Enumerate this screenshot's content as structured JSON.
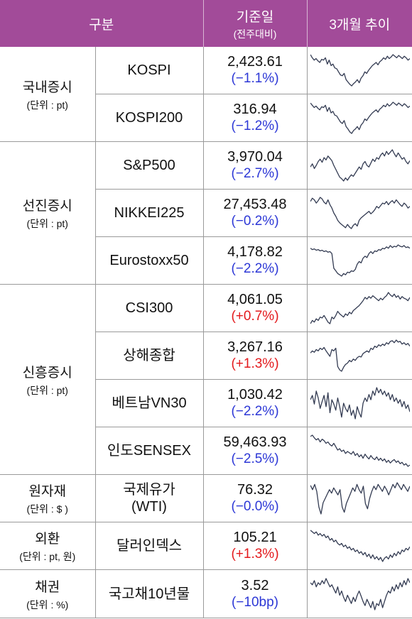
{
  "header": {
    "category": "구분",
    "date_title": "기준일",
    "date_sub": "(전주대비)",
    "trend": "3개월 추이"
  },
  "groups": [
    {
      "name": "국내증시",
      "unit": "(단위 : pt)"
    },
    {
      "name": "선진증시",
      "unit": "(단위 : pt)"
    },
    {
      "name": "신흥증시",
      "unit": "(단위 : pt)"
    },
    {
      "name": "원자재",
      "unit": "(단위 : $ )"
    },
    {
      "name": "외환",
      "unit": "(단위 : pt, 원)"
    },
    {
      "name": "채권",
      "unit": "(단위 : %)"
    }
  ],
  "rows": [
    {
      "name": "KOSPI",
      "value": "2,423.61",
      "change": "(−1.1%)",
      "direction": "down",
      "trend": [
        62,
        58,
        55,
        57,
        54,
        52,
        56,
        55,
        58,
        50,
        55,
        48,
        50,
        45,
        44,
        40,
        36,
        35,
        38,
        30,
        27,
        24,
        22,
        25,
        27,
        30,
        26,
        32,
        35,
        40,
        38,
        42,
        45,
        48,
        50,
        52,
        49,
        53,
        55,
        58,
        56,
        60,
        57,
        59,
        62,
        60,
        58,
        61,
        59,
        57,
        60,
        58,
        55,
        57
      ]
    },
    {
      "name": "KOSPI200",
      "value": "316.94",
      "change": "(−1.2%)",
      "direction": "down",
      "trend": [
        60,
        57,
        54,
        56,
        53,
        51,
        55,
        54,
        57,
        49,
        54,
        47,
        49,
        44,
        43,
        39,
        35,
        33,
        37,
        29,
        26,
        22,
        20,
        24,
        26,
        29,
        25,
        31,
        34,
        39,
        37,
        41,
        44,
        47,
        49,
        51,
        48,
        52,
        54,
        57,
        55,
        59,
        56,
        58,
        61,
        59,
        57,
        60,
        58,
        56,
        59,
        57,
        54,
        56
      ]
    },
    {
      "name": "S&P500",
      "value": "3,970.04",
      "change": "(−2.7%)",
      "direction": "down",
      "trend": [
        48,
        52,
        46,
        50,
        55,
        58,
        54,
        60,
        57,
        62,
        59,
        56,
        50,
        45,
        40,
        35,
        33,
        30,
        34,
        31,
        35,
        38,
        36,
        40,
        44,
        48,
        45,
        52,
        55,
        50,
        48,
        53,
        58,
        55,
        60,
        58,
        63,
        66,
        62,
        68,
        64,
        67,
        70,
        65,
        61,
        66,
        62,
        58,
        60,
        55,
        52,
        56
      ]
    },
    {
      "name": "NIKKEI225",
      "value": "27,453.48",
      "change": "(−0.2%)",
      "direction": "down",
      "trend": [
        58,
        62,
        60,
        56,
        59,
        63,
        61,
        57,
        55,
        60,
        54,
        50,
        44,
        40,
        35,
        32,
        30,
        28,
        26,
        30,
        27,
        25,
        29,
        31,
        28,
        35,
        38,
        40,
        42,
        44,
        46,
        43,
        45,
        48,
        52,
        50,
        53,
        56,
        55,
        58,
        54,
        57,
        59,
        56,
        60,
        57,
        54,
        52,
        56,
        54,
        50,
        52
      ]
    },
    {
      "name": "Eurostoxx50",
      "value": "4,178.82",
      "change": "(−2.2%)",
      "direction": "down",
      "trend": [
        60,
        58,
        59,
        57,
        58,
        56,
        57,
        55,
        56,
        54,
        55,
        52,
        30,
        26,
        22,
        20,
        18,
        22,
        20,
        24,
        23,
        26,
        25,
        28,
        36,
        40,
        38,
        45,
        48,
        46,
        52,
        55,
        52,
        56,
        55,
        58,
        57,
        60,
        59,
        62,
        60,
        64,
        61,
        63,
        62,
        65,
        63,
        62,
        64,
        61,
        62,
        60
      ]
    },
    {
      "name": "CSI300",
      "value": "4,061.05",
      "change": "(+0.7%)",
      "direction": "up",
      "trend": [
        30,
        34,
        32,
        36,
        34,
        38,
        37,
        40,
        36,
        32,
        30,
        38,
        36,
        40,
        45,
        42,
        40,
        38,
        42,
        40,
        44,
        42,
        46,
        48,
        50,
        52,
        55,
        58,
        62,
        60,
        63,
        61,
        64,
        62,
        60,
        58,
        61,
        59,
        62,
        64,
        68,
        65,
        63,
        66,
        62,
        64,
        60,
        63,
        61,
        60,
        58,
        62
      ]
    },
    {
      "name": "상해종합",
      "value": "3,267.16",
      "change": "(+1.3%)",
      "direction": "up",
      "trend": [
        45,
        48,
        46,
        50,
        48,
        52,
        50,
        53,
        48,
        44,
        40,
        50,
        48,
        52,
        25,
        20,
        18,
        24,
        28,
        30,
        34,
        32,
        36,
        34,
        38,
        40,
        39,
        44,
        46,
        48,
        46,
        52,
        50,
        55,
        53,
        57,
        55,
        58,
        56,
        60,
        58,
        62,
        63,
        60,
        64,
        61,
        62,
        58,
        60,
        57,
        59,
        55
      ]
    },
    {
      "name": "베트남VN30",
      "value": "1,030.42",
      "change": "(−2.2%)",
      "direction": "down",
      "trend": [
        50,
        55,
        45,
        60,
        52,
        40,
        48,
        55,
        42,
        58,
        35,
        50,
        45,
        38,
        52,
        42,
        30,
        46,
        40,
        36,
        44,
        32,
        38,
        28,
        42,
        35,
        30,
        46,
        52,
        48,
        56,
        50,
        60,
        55,
        64,
        58,
        62,
        56,
        60,
        54,
        58,
        50,
        56,
        48,
        52,
        46,
        50,
        42,
        48,
        40,
        44,
        36
      ]
    },
    {
      "name": "인도SENSEX",
      "value": "59,463.93",
      "change": "(−2.5%)",
      "direction": "down",
      "trend": [
        60,
        62,
        58,
        55,
        57,
        52,
        56,
        54,
        50,
        52,
        48,
        46,
        50,
        45,
        40,
        42,
        38,
        40,
        35,
        38,
        36,
        34,
        38,
        32,
        35,
        30,
        33,
        28,
        34,
        30,
        27,
        32,
        28,
        26,
        30,
        25,
        28,
        24,
        27,
        22,
        25,
        21,
        24,
        26,
        22,
        24,
        20,
        22,
        18,
        20,
        16,
        18
      ]
    },
    {
      "name": "국제유가",
      "name2": "(WTI)",
      "value": "76.32",
      "change": "(−0.0%)",
      "direction": "down",
      "trend": [
        55,
        50,
        56,
        48,
        30,
        22,
        35,
        40,
        45,
        50,
        46,
        52,
        48,
        44,
        50,
        30,
        24,
        34,
        40,
        46,
        52,
        48,
        56,
        50,
        46,
        54,
        34,
        28,
        40,
        48,
        54,
        50,
        56,
        52,
        48,
        54,
        50,
        44,
        50,
        56,
        52,
        58,
        54,
        50,
        56,
        52,
        48,
        54
      ]
    },
    {
      "name": "달러인덱스",
      "value": "105.21",
      "change": "(+1.3%)",
      "direction": "up",
      "trend": [
        62,
        60,
        58,
        60,
        56,
        58,
        55,
        57,
        53,
        55,
        50,
        52,
        48,
        50,
        46,
        44,
        46,
        42,
        44,
        40,
        42,
        38,
        40,
        36,
        38,
        34,
        36,
        32,
        35,
        30,
        33,
        28,
        32,
        27,
        30,
        26,
        29,
        24,
        28,
        30,
        27,
        32,
        29,
        34,
        31,
        36,
        33,
        38,
        36,
        40,
        38,
        42
      ]
    },
    {
      "name": "국고채10년물",
      "value": "3.52",
      "change": "(−10bp)",
      "direction": "down",
      "trend": [
        48,
        46,
        50,
        44,
        48,
        46,
        50,
        47,
        52,
        48,
        44,
        46,
        42,
        38,
        44,
        36,
        40,
        34,
        30,
        36,
        32,
        28,
        34,
        30,
        36,
        40,
        35,
        30,
        26,
        32,
        28,
        24,
        30,
        22,
        28,
        26,
        32,
        24,
        30,
        36,
        40,
        38,
        44,
        40,
        46,
        42,
        48,
        44,
        50,
        46,
        52,
        48
      ]
    }
  ]
}
